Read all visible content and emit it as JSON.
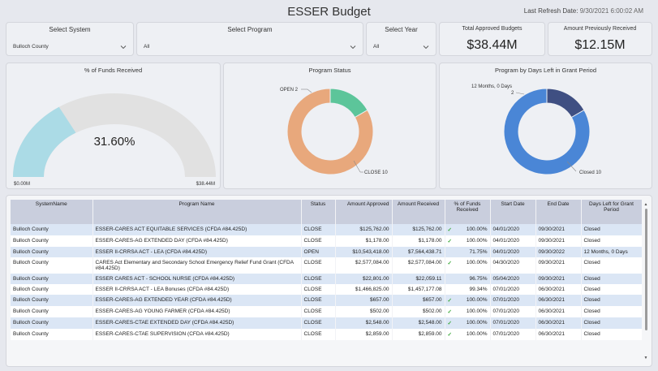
{
  "header": {
    "title": "ESSER Budget",
    "refresh_label": "Last Refresh Date:",
    "refresh_value": "9/30/2021 6:00:02 AM"
  },
  "slicers": {
    "system": {
      "label": "Select System",
      "value": "Bulloch County"
    },
    "program": {
      "label": "Select Program",
      "value": "All"
    },
    "year": {
      "label": "Select Year",
      "value": "All"
    }
  },
  "kpis": {
    "approved": {
      "label": "Total Approved Budgets",
      "value": "$38.44M"
    },
    "received": {
      "label": "Amount Previously Received",
      "value": "$12.15M"
    }
  },
  "gauge": {
    "title": "% of Funds Received",
    "value_label": "31.60%",
    "fraction": 0.316,
    "min_label": "$0.00M",
    "max_label": "$38.44M"
  },
  "status_chart": {
    "title": "Program Status",
    "label_open": "OPEN 2",
    "label_close": "CLOSE 10"
  },
  "days_chart": {
    "title": "Program by Days Left in Grant Period",
    "label_small_1": "12 Months, 0 Days",
    "label_small_2": "2",
    "label_closed": "Closed 10"
  },
  "chart_data": [
    {
      "type": "pie",
      "title": "Program Status",
      "categories": [
        "OPEN",
        "CLOSE"
      ],
      "values": [
        2,
        10
      ],
      "colors": [
        "#5cc59a",
        "#e8a87c"
      ]
    },
    {
      "type": "pie",
      "title": "Program by Days Left in Grant Period",
      "categories": [
        "12 Months, 0 Days",
        "Closed"
      ],
      "values": [
        2,
        10
      ],
      "colors": [
        "#3f4f82",
        "#4a86d6"
      ]
    }
  ],
  "table": {
    "headers": [
      "SystemName",
      "Program Name",
      "Status",
      "Amount Approved",
      "Amount Received",
      "% of Funds Received",
      "Start Date",
      "End Date",
      "Days Left for Grant Period"
    ],
    "rows": [
      {
        "sys": "Bulloch County",
        "prog": "ESSER-CARES ACT EQUITABLE SERVICES (CFDA #84.425D)",
        "status": "CLOSE",
        "approved": "$125,762.00",
        "received": "$125,762.00",
        "check": true,
        "pct": "100.00%",
        "start": "04/01/2020",
        "end": "09/30/2021",
        "days": "Closed"
      },
      {
        "sys": "Bulloch County",
        "prog": "ESSER-CARES-AG EXTENDED DAY (CFDA #84.425D)",
        "status": "CLOSE",
        "approved": "$1,178.00",
        "received": "$1,178.00",
        "check": true,
        "pct": "100.00%",
        "start": "04/01/2020",
        "end": "09/30/2021",
        "days": "Closed"
      },
      {
        "sys": "Bulloch County",
        "prog": "ESSER II-CRRSA ACT - LEA (CFDA #84.425D)",
        "status": "OPEN",
        "approved": "$10,543,418.00",
        "received": "$7,564,438.71",
        "check": false,
        "pct": "71.75%",
        "start": "04/01/2020",
        "end": "09/30/2022",
        "days": "12 Months, 0 Days"
      },
      {
        "sys": "Bulloch County",
        "prog": "CARES Act Elementary and Secondary School Emergency Relief Fund Grant (CFDA #84.425D)",
        "status": "CLOSE",
        "approved": "$2,577,084.00",
        "received": "$2,577,084.00",
        "check": true,
        "pct": "100.00%",
        "start": "04/30/2020",
        "end": "09/30/2021",
        "days": "Closed"
      },
      {
        "sys": "Bulloch County",
        "prog": "ESSER CARES ACT - SCHOOL NURSE (CFDA #84.425D)",
        "status": "CLOSE",
        "approved": "$22,801.00",
        "received": "$22,059.11",
        "check": false,
        "pct": "96.75%",
        "start": "05/04/2020",
        "end": "09/30/2021",
        "days": "Closed"
      },
      {
        "sys": "Bulloch County",
        "prog": "ESSER II-CRRSA ACT - LEA Bonuses (CFDA #84.425D)",
        "status": "CLOSE",
        "approved": "$1,466,825.00",
        "received": "$1,457,177.08",
        "check": false,
        "pct": "99.34%",
        "start": "07/01/2020",
        "end": "06/30/2021",
        "days": "Closed"
      },
      {
        "sys": "Bulloch County",
        "prog": "ESSER-CARES-AG EXTENDED YEAR (CFDA #84.425D)",
        "status": "CLOSE",
        "approved": "$657.00",
        "received": "$657.00",
        "check": true,
        "pct": "100.00%",
        "start": "07/01/2020",
        "end": "06/30/2021",
        "days": "Closed"
      },
      {
        "sys": "Bulloch County",
        "prog": "ESSER-CARES-AG YOUNG FARMER (CFDA #84.425D)",
        "status": "CLOSE",
        "approved": "$502.00",
        "received": "$502.00",
        "check": true,
        "pct": "100.00%",
        "start": "07/01/2020",
        "end": "06/30/2021",
        "days": "Closed"
      },
      {
        "sys": "Bulloch County",
        "prog": "ESSER-CARES-CTAE EXTENDED DAY (CFDA #84.425D)",
        "status": "CLOSE",
        "approved": "$2,548.00",
        "received": "$2,548.00",
        "check": true,
        "pct": "100.00%",
        "start": "07/01/2020",
        "end": "06/30/2021",
        "days": "Closed"
      },
      {
        "sys": "Bulloch County",
        "prog": "ESSER-CARES-CTAE SUPERVISION (CFDA #84.425D)",
        "status": "CLOSE",
        "approved": "$2,859.00",
        "received": "$2,859.00",
        "check": true,
        "pct": "100.00%",
        "start": "07/01/2020",
        "end": "06/30/2021",
        "days": "Closed"
      }
    ]
  }
}
